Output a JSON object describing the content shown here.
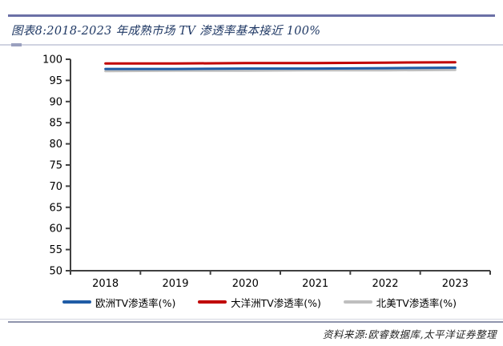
{
  "header": {
    "title": "图表8:2018-2023 年成熟市场 TV 渗透率基本接近 100%"
  },
  "footer": {
    "source": "资料来源:欧睿数据库,太平洋证券整理"
  },
  "colors": {
    "title_text": "#1f3864",
    "top_rule": "#6b70a6",
    "axis": "#404040",
    "europe_blue": "#1f5ca6",
    "oceania_red": "#c00000",
    "north_america_gray": "#bfbfbf"
  },
  "chart_data": {
    "type": "line",
    "title": "图表8:2018-2023 年成熟市场 TV 渗透率基本接近 100%",
    "categories": [
      "2018",
      "2019",
      "2020",
      "2021",
      "2022",
      "2023"
    ],
    "series": [
      {
        "name": "欧洲TV渗透率(%)",
        "color": "#1f5ca6",
        "values": [
          97.7,
          97.7,
          97.8,
          97.8,
          97.9,
          98.0
        ]
      },
      {
        "name": "大洋洲TV渗透率(%)",
        "color": "#c00000",
        "values": [
          99.0,
          99.0,
          99.1,
          99.1,
          99.2,
          99.3
        ]
      },
      {
        "name": "北美TV渗透率(%)",
        "color": "#bfbfbf",
        "values": [
          97.2,
          97.3,
          97.3,
          97.4,
          97.4,
          97.5
        ]
      }
    ],
    "xlabel": "",
    "ylabel": "",
    "ylim": [
      50,
      100
    ],
    "ytick_step": 5,
    "yticks": [
      50,
      55,
      60,
      65,
      70,
      75,
      80,
      85,
      90,
      95,
      100
    ],
    "grid": false,
    "legend_position": "bottom"
  }
}
